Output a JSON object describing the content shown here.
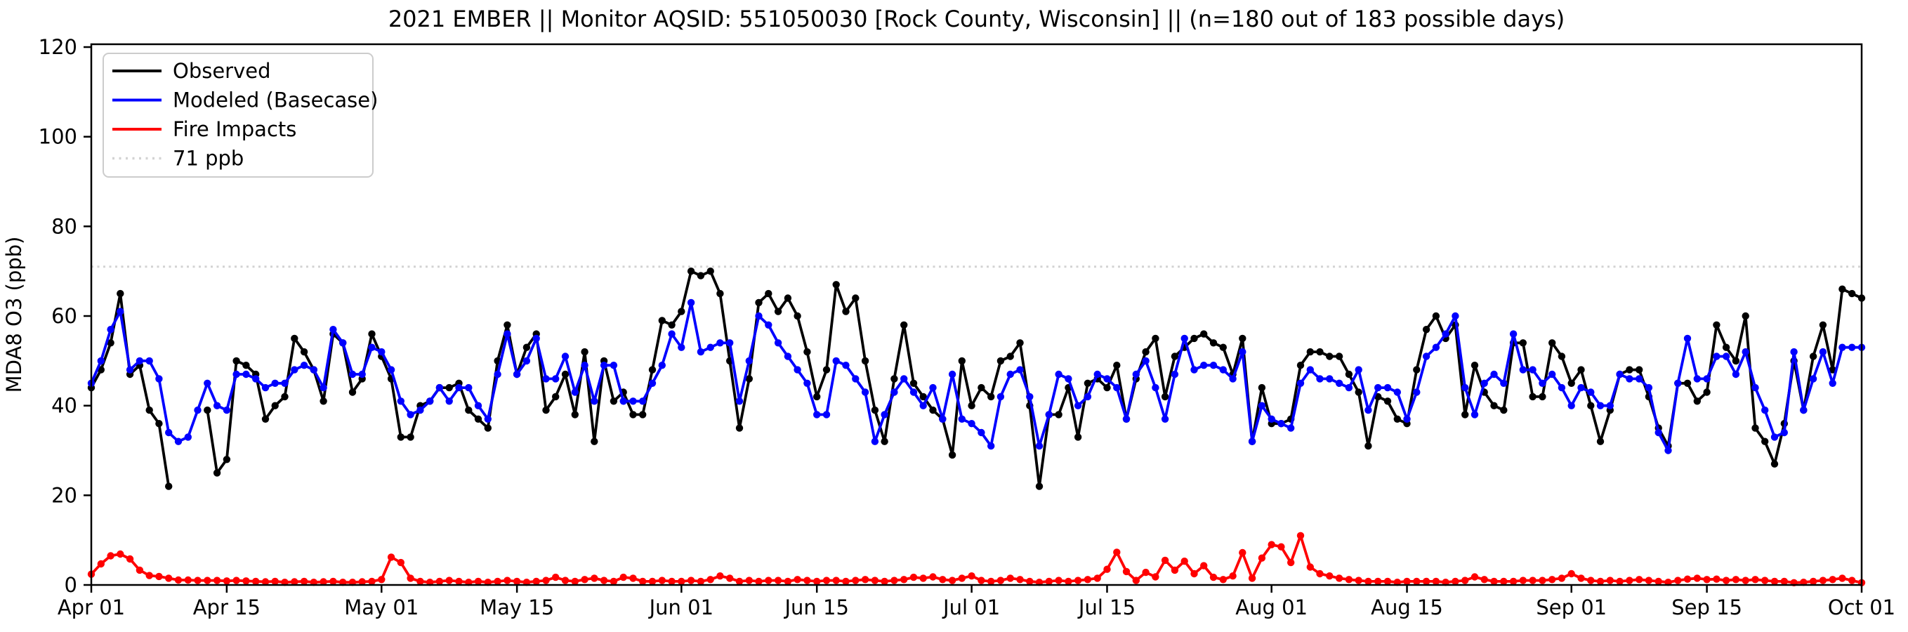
{
  "title": "2021 EMBER || Monitor AQSID: 551050030 [Rock County, Wisconsin] || (n=180 out of 183 possible days)",
  "legend": {
    "entries": [
      {
        "label": "Observed",
        "color": "#000000",
        "style": "solid"
      },
      {
        "label": "Modeled (Basecase)",
        "color": "#0000ff",
        "style": "solid"
      },
      {
        "label": "Fire Impacts",
        "color": "#ff0000",
        "style": "solid"
      },
      {
        "label": "71 ppb",
        "color": "#d3d3d3",
        "style": "dotted"
      }
    ]
  },
  "chart_data": {
    "type": "line",
    "title": "2021 EMBER || Monitor AQSID: 551050030 [Rock County, Wisconsin] || (n=180 out of 183 possible days)",
    "xlabel": "",
    "ylabel": "MDA8 O3 (ppb)",
    "ylim": [
      0,
      120.6
    ],
    "yticks": [
      0,
      20,
      40,
      60,
      80,
      100,
      120
    ],
    "grid": false,
    "legend_position": "upper left",
    "x_ticks": [
      {
        "day": 1,
        "label": "Apr 01"
      },
      {
        "day": 15,
        "label": "Apr 15"
      },
      {
        "day": 31,
        "label": "May 01"
      },
      {
        "day": 45,
        "label": "May 15"
      },
      {
        "day": 62,
        "label": "Jun 01"
      },
      {
        "day": 76,
        "label": "Jun 15"
      },
      {
        "day": 92,
        "label": "Jul 01"
      },
      {
        "day": 106,
        "label": "Jul 15"
      },
      {
        "day": 123,
        "label": "Aug 01"
      },
      {
        "day": 137,
        "label": "Aug 15"
      },
      {
        "day": 154,
        "label": "Sep 01"
      },
      {
        "day": 168,
        "label": "Sep 15"
      },
      {
        "day": 184,
        "label": "Oct 01"
      }
    ],
    "threshold": {
      "value": 71,
      "label": "71 ppb",
      "color": "#d3d3d3",
      "style": "dotted"
    },
    "series": [
      {
        "name": "Observed",
        "color": "#000000",
        "values": [
          44,
          48,
          54,
          65,
          47,
          49,
          39,
          36,
          22,
          null,
          null,
          null,
          39,
          25,
          28,
          50,
          49,
          47,
          37,
          40,
          42,
          55,
          52,
          48,
          41,
          56,
          54,
          43,
          46,
          56,
          51,
          46,
          33,
          33,
          40,
          41,
          44,
          44,
          45,
          39,
          37,
          35,
          50,
          58,
          47,
          53,
          56,
          39,
          42,
          47,
          38,
          52,
          32,
          50,
          41,
          43,
          38,
          38,
          48,
          59,
          58,
          61,
          70,
          69,
          70,
          65,
          50,
          35,
          46,
          63,
          65,
          61,
          64,
          60,
          52,
          42,
          48,
          67,
          61,
          64,
          50,
          39,
          32,
          46,
          58,
          45,
          42,
          39,
          37,
          29,
          50,
          40,
          44,
          42,
          50,
          51,
          54,
          40,
          22,
          38,
          38,
          44,
          33,
          45,
          46,
          44,
          49,
          37,
          46,
          52,
          55,
          42,
          51,
          53,
          55,
          56,
          54,
          53,
          47,
          55,
          32,
          44,
          36,
          36,
          37,
          49,
          52,
          52,
          51,
          51,
          47,
          43,
          31,
          42,
          41,
          37,
          36,
          48,
          57,
          60,
          55,
          58,
          38,
          49,
          43,
          40,
          39,
          54,
          54,
          42,
          42,
          54,
          51,
          45,
          48,
          40,
          32,
          39,
          47,
          48,
          48,
          42,
          35,
          31,
          45,
          45,
          41,
          43,
          58,
          53,
          50,
          60,
          35,
          32,
          27,
          36,
          50,
          39,
          51,
          58,
          48,
          66,
          65,
          64
        ]
      },
      {
        "name": "Modeled (Basecase)",
        "color": "#0000ff",
        "values": [
          45,
          50,
          57,
          61,
          48,
          50,
          50,
          46,
          34,
          32,
          33,
          39,
          45,
          40,
          39,
          47,
          47,
          46,
          44,
          45,
          45,
          48,
          49,
          48,
          44,
          57,
          54,
          47,
          47,
          53,
          52,
          48,
          41,
          38,
          39,
          41,
          44,
          41,
          44,
          44,
          40,
          37,
          47,
          56,
          47,
          50,
          55,
          46,
          46,
          51,
          43,
          49,
          41,
          49,
          49,
          41,
          41,
          41,
          45,
          49,
          56,
          53,
          63,
          52,
          53,
          54,
          54,
          41,
          50,
          60,
          58,
          54,
          51,
          48,
          45,
          38,
          38,
          50,
          49,
          46,
          43,
          32,
          38,
          43,
          46,
          43,
          40,
          44,
          37,
          47,
          37,
          36,
          34,
          31,
          42,
          47,
          48,
          42,
          31,
          38,
          47,
          46,
          40,
          42,
          47,
          46,
          44,
          37,
          47,
          50,
          44,
          37,
          47,
          55,
          48,
          49,
          49,
          48,
          46,
          52,
          32,
          40,
          37,
          36,
          35,
          45,
          48,
          46,
          46,
          45,
          44,
          48,
          39,
          44,
          44,
          43,
          37,
          43,
          51,
          53,
          56,
          60,
          44,
          38,
          45,
          47,
          45,
          56,
          48,
          48,
          45,
          47,
          44,
          40,
          44,
          43,
          40,
          40,
          47,
          46,
          46,
          44,
          34,
          30,
          45,
          55,
          46,
          46,
          51,
          51,
          47,
          52,
          44,
          39,
          33,
          34,
          52,
          39,
          46,
          52,
          45,
          53,
          53,
          53
        ]
      },
      {
        "name": "Fire Impacts",
        "color": "#ff0000",
        "values": [
          2.4,
          4.7,
          6.5,
          6.9,
          5.8,
          3.3,
          2.1,
          1.9,
          1.5,
          1.1,
          1.1,
          1,
          1,
          1,
          0.9,
          1,
          0.9,
          0.8,
          0.7,
          0.8,
          0.6,
          0.7,
          0.8,
          0.6,
          0.7,
          0.8,
          0.6,
          0.6,
          0.7,
          0.8,
          1.2,
          6.2,
          5,
          1.5,
          0.8,
          0.6,
          0.8,
          1,
          0.8,
          0.6,
          0.8,
          0.6,
          0.8,
          1,
          0.8,
          0.6,
          0.8,
          1,
          1.7,
          1,
          0.8,
          1.2,
          1.5,
          1,
          0.8,
          1.7,
          1.5,
          0.8,
          0.8,
          1,
          0.8,
          0.8,
          1,
          0.8,
          1.2,
          2,
          1.5,
          0.8,
          1,
          0.8,
          1,
          1,
          0.8,
          1.2,
          1,
          0.8,
          1,
          1,
          0.8,
          1,
          1.2,
          1,
          0.8,
          1,
          1.2,
          1.7,
          1.5,
          1.8,
          1.2,
          1,
          1.5,
          2,
          1,
          0.8,
          1,
          1.5,
          1.2,
          0.8,
          0.6,
          0.8,
          1,
          0.8,
          1,
          1.2,
          1.5,
          3.5,
          7.3,
          3,
          1,
          2.8,
          1.8,
          5.5,
          3.3,
          5.3,
          2.5,
          4.3,
          1.7,
          1.2,
          2,
          7.2,
          1.5,
          6,
          9,
          8.5,
          5,
          11,
          4,
          2.5,
          2,
          1.5,
          1.2,
          1,
          0.8,
          0.8,
          0.8,
          0.6,
          0.8,
          0.8,
          0.8,
          0.8,
          0.6,
          0.8,
          1,
          1.8,
          1.2,
          0.8,
          0.8,
          0.8,
          1,
          1,
          1,
          1.2,
          1.5,
          2.5,
          1.5,
          1,
          0.8,
          1,
          0.8,
          1,
          1.2,
          1,
          0.8,
          0.6,
          1,
          1.3,
          1.5,
          1.2,
          1.3,
          1,
          1.2,
          1,
          1.2,
          1,
          0.8,
          0.8,
          0.5,
          0.6,
          0.8,
          1,
          1.2,
          1.5,
          1,
          0.5
        ]
      }
    ]
  }
}
